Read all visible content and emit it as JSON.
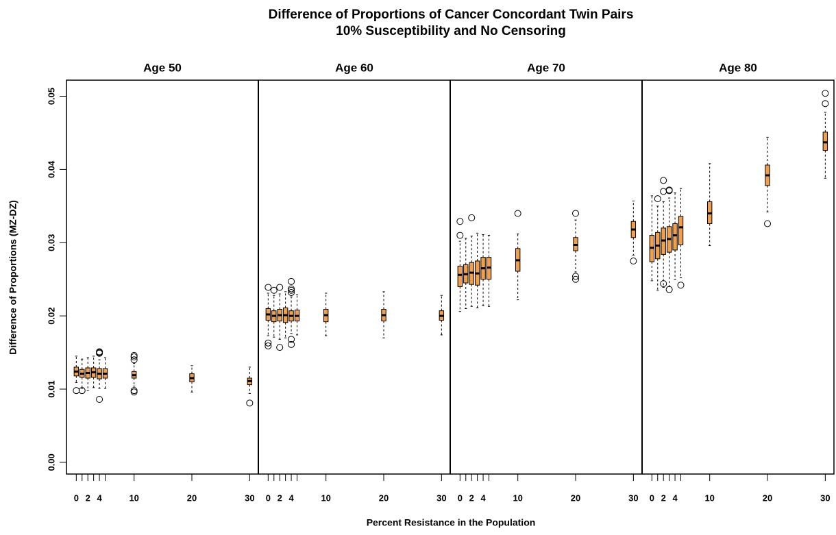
{
  "chart_data": {
    "type": "box",
    "title": "Difference of Proportions of Cancer Concordant Twin Pairs",
    "subtitle": "10% Susceptibility and No Censoring",
    "xlabel": "Percent Resistance in the Population",
    "ylabel": "Difference of Proportions (MZ-DZ)",
    "color": "#f0a04b",
    "ylim": [
      -0.0016,
      0.0522
    ],
    "yticks": [
      {
        "value": 0,
        "label": "0.00"
      },
      0.01,
      0.02,
      0.03,
      0.04,
      0.05
    ],
    "xlim": [
      -1.7,
      31.5
    ],
    "xticks": [
      0,
      {
        "value": 1,
        "label": null
      },
      2,
      {
        "value": 3,
        "label": null
      },
      4,
      {
        "value": 5,
        "label": null
      },
      10,
      20,
      30
    ],
    "positions": [
      0,
      1,
      2,
      3,
      4,
      5,
      10,
      20,
      30
    ],
    "panels": [
      {
        "title": "Age 50",
        "boxes": [
          {
            "whislo": 0.0109,
            "q1": 0.0118,
            "med": 0.0124,
            "q3": 0.013,
            "whishi": 0.0145,
            "fliers": [
              0.0098
            ]
          },
          {
            "whislo": 0.0101,
            "q1": 0.0116,
            "med": 0.0121,
            "q3": 0.0127,
            "whishi": 0.0141,
            "fliers": [
              0.0098
            ]
          },
          {
            "whislo": 0.0098,
            "q1": 0.0115,
            "med": 0.0122,
            "q3": 0.0129,
            "whishi": 0.0143,
            "fliers": []
          },
          {
            "whislo": 0.0102,
            "q1": 0.0116,
            "med": 0.0123,
            "q3": 0.0129,
            "whishi": 0.0145,
            "fliers": []
          },
          {
            "whislo": 0.0101,
            "q1": 0.0114,
            "med": 0.0121,
            "q3": 0.0128,
            "whishi": 0.014,
            "fliers": [
              0.0149,
              0.015,
              0.0151,
              0.0086
            ]
          },
          {
            "whislo": 0.0101,
            "q1": 0.0115,
            "med": 0.0121,
            "q3": 0.0128,
            "whishi": 0.0143,
            "fliers": []
          },
          {
            "whislo": 0.0104,
            "q1": 0.0115,
            "med": 0.0119,
            "q3": 0.0124,
            "whishi": 0.0135,
            "fliers": [
              0.014,
              0.0144,
              0.0146,
              0.0098,
              0.0096
            ]
          },
          {
            "whislo": 0.0096,
            "q1": 0.011,
            "med": 0.0115,
            "q3": 0.0121,
            "whishi": 0.0132,
            "fliers": []
          },
          {
            "whislo": 0.0094,
            "q1": 0.0106,
            "med": 0.0111,
            "q3": 0.0115,
            "whishi": 0.013,
            "fliers": [
              0.0081
            ]
          }
        ]
      },
      {
        "title": "Age 60",
        "boxes": [
          {
            "whislo": 0.0173,
            "q1": 0.0194,
            "med": 0.0202,
            "q3": 0.021,
            "whishi": 0.0231,
            "fliers": [
              0.0239,
              0.0163,
              0.0159
            ]
          },
          {
            "whislo": 0.0171,
            "q1": 0.0192,
            "med": 0.02,
            "q3": 0.0207,
            "whishi": 0.0228,
            "fliers": [
              0.0235
            ]
          },
          {
            "whislo": 0.0168,
            "q1": 0.0193,
            "med": 0.0201,
            "q3": 0.0209,
            "whishi": 0.023,
            "fliers": [
              0.0239,
              0.0157
            ]
          },
          {
            "whislo": 0.017,
            "q1": 0.0191,
            "med": 0.0201,
            "q3": 0.0211,
            "whishi": 0.0233,
            "fliers": []
          },
          {
            "whislo": 0.0176,
            "q1": 0.0193,
            "med": 0.02,
            "q3": 0.0207,
            "whishi": 0.0226,
            "fliers": [
              0.0247,
              0.0237,
              0.0235,
              0.0232,
              0.0168,
              0.0161
            ]
          },
          {
            "whislo": 0.0174,
            "q1": 0.0193,
            "med": 0.02,
            "q3": 0.0208,
            "whishi": 0.0229,
            "fliers": []
          },
          {
            "whislo": 0.0173,
            "q1": 0.0192,
            "med": 0.0201,
            "q3": 0.0209,
            "whishi": 0.0231,
            "fliers": []
          },
          {
            "whislo": 0.017,
            "q1": 0.0193,
            "med": 0.0201,
            "q3": 0.0209,
            "whishi": 0.0233,
            "fliers": []
          },
          {
            "whislo": 0.0174,
            "q1": 0.0194,
            "med": 0.02,
            "q3": 0.0207,
            "whishi": 0.0228,
            "fliers": []
          }
        ]
      },
      {
        "title": "Age 70",
        "boxes": [
          {
            "whislo": 0.0206,
            "q1": 0.024,
            "med": 0.0256,
            "q3": 0.0268,
            "whishi": 0.0302,
            "fliers": [
              0.0329,
              0.031
            ]
          },
          {
            "whislo": 0.021,
            "q1": 0.0245,
            "med": 0.0257,
            "q3": 0.027,
            "whishi": 0.0306,
            "fliers": []
          },
          {
            "whislo": 0.0213,
            "q1": 0.0243,
            "med": 0.0259,
            "q3": 0.0273,
            "whishi": 0.0309,
            "fliers": [
              0.0334
            ]
          },
          {
            "whislo": 0.0211,
            "q1": 0.0242,
            "med": 0.0258,
            "q3": 0.0275,
            "whishi": 0.0313,
            "fliers": []
          },
          {
            "whislo": 0.0214,
            "q1": 0.025,
            "med": 0.0265,
            "q3": 0.028,
            "whishi": 0.0311,
            "fliers": []
          },
          {
            "whislo": 0.0213,
            "q1": 0.025,
            "med": 0.0266,
            "q3": 0.028,
            "whishi": 0.031,
            "fliers": []
          },
          {
            "whislo": 0.0222,
            "q1": 0.0261,
            "med": 0.0276,
            "q3": 0.0292,
            "whishi": 0.0312,
            "fliers": [
              0.034
            ]
          },
          {
            "whislo": 0.026,
            "q1": 0.0289,
            "med": 0.0297,
            "q3": 0.0307,
            "whishi": 0.0331,
            "fliers": [
              0.034,
              0.0254,
              0.025
            ]
          },
          {
            "whislo": 0.0283,
            "q1": 0.0307,
            "med": 0.0318,
            "q3": 0.0329,
            "whishi": 0.0357,
            "fliers": [
              0.0275
            ]
          }
        ]
      },
      {
        "title": "Age 80",
        "boxes": [
          {
            "whislo": 0.0248,
            "q1": 0.0274,
            "med": 0.0293,
            "q3": 0.031,
            "whishi": 0.0364,
            "fliers": []
          },
          {
            "whislo": 0.0235,
            "q1": 0.0278,
            "med": 0.0296,
            "q3": 0.0314,
            "whishi": 0.035,
            "fliers": [
              0.036
            ]
          },
          {
            "whislo": 0.0239,
            "q1": 0.0284,
            "med": 0.0303,
            "q3": 0.032,
            "whishi": 0.0356,
            "fliers": [
              0.0385,
              0.037,
              0.0244
            ]
          },
          {
            "whislo": 0.024,
            "q1": 0.0287,
            "med": 0.0305,
            "q3": 0.0322,
            "whishi": 0.0361,
            "fliers": [
              0.0372,
              0.0371,
              0.0236
            ]
          },
          {
            "whislo": 0.025,
            "q1": 0.029,
            "med": 0.031,
            "q3": 0.0326,
            "whishi": 0.0368,
            "fliers": []
          },
          {
            "whislo": 0.0252,
            "q1": 0.0297,
            "med": 0.0321,
            "q3": 0.0336,
            "whishi": 0.0374,
            "fliers": [
              0.0242
            ]
          },
          {
            "whislo": 0.0296,
            "q1": 0.0326,
            "med": 0.034,
            "q3": 0.0356,
            "whishi": 0.0408,
            "fliers": []
          },
          {
            "whislo": 0.0342,
            "q1": 0.0378,
            "med": 0.0392,
            "q3": 0.0406,
            "whishi": 0.0444,
            "fliers": [
              0.0326
            ]
          },
          {
            "whislo": 0.0388,
            "q1": 0.0426,
            "med": 0.0437,
            "q3": 0.0451,
            "whishi": 0.0478,
            "fliers": [
              0.0504,
              0.049
            ]
          }
        ]
      }
    ]
  }
}
